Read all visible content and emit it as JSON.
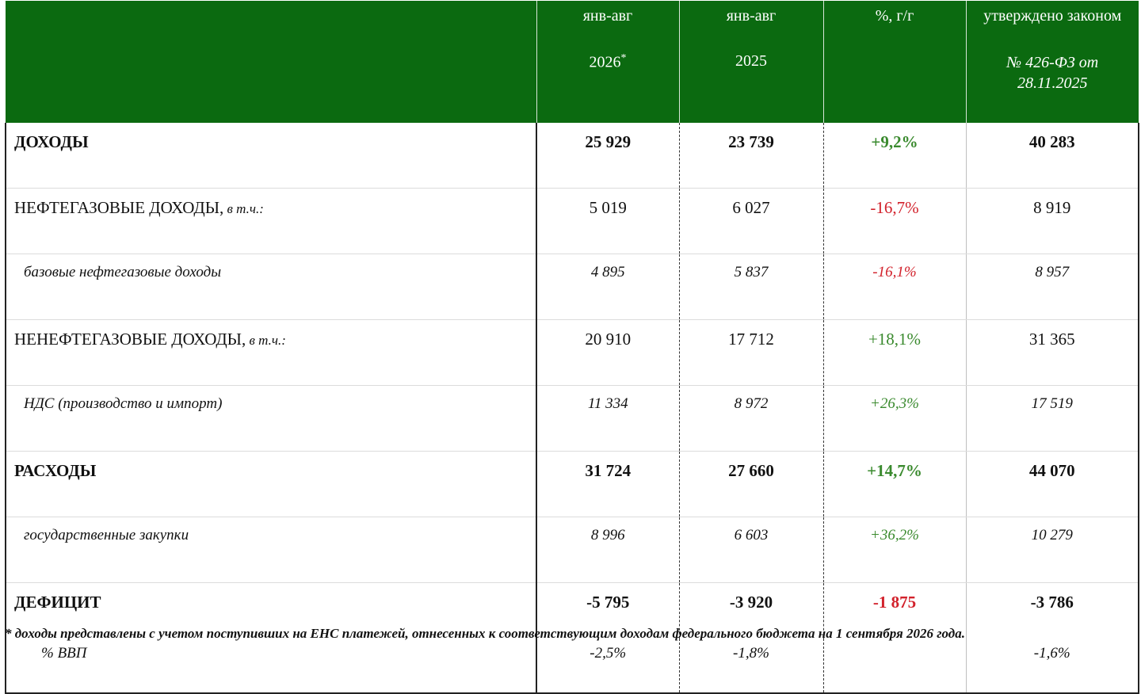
{
  "header": {
    "col1_line1": "янв-авг",
    "col1_line2": "2026",
    "col1_mark": "*",
    "col2_line1": "янв-авг",
    "col2_line2": "2025",
    "col3_line1": "%, г/г",
    "col4_line1": "утверждено законом",
    "col4_line2": "№ 426-ФЗ от",
    "col4_line3": "28.11.2025"
  },
  "rows": [
    {
      "label": "ДОХОДЫ",
      "suffix": "",
      "v2026": "25 929",
      "v2025": "23 739",
      "yoy": "+9,2%",
      "law": "40 283"
    },
    {
      "label": "НЕФТЕГАЗОВЫЕ ДОХОДЫ,",
      "suffix": " в т.ч.:",
      "v2026": "5 019",
      "v2025": "6 027",
      "yoy": "-16,7%",
      "law": "8 919"
    },
    {
      "label": "базовые нефтегазовые доходы",
      "suffix": "",
      "v2026": "4 895",
      "v2025": "5 837",
      "yoy": "-16,1%",
      "law": "8 957"
    },
    {
      "label": "НЕНЕФТЕГАЗОВЫЕ ДОХОДЫ,",
      "suffix": " в т.ч.:",
      "v2026": "20 910",
      "v2025": "17 712",
      "yoy": "+18,1%",
      "law": "31 365"
    },
    {
      "label": "НДС (производство и импорт)",
      "suffix": "",
      "v2026": "11 334",
      "v2025": "8 972",
      "yoy": "+26,3%",
      "law": "17 519"
    },
    {
      "label": "РАСХОДЫ",
      "suffix": "",
      "v2026": "31 724",
      "v2025": "27 660",
      "yoy": "+14,7%",
      "law": "44 070"
    },
    {
      "label": "государственные закупки",
      "suffix": "",
      "v2026": "8 996",
      "v2025": "6 603",
      "yoy": "+36,2%",
      "law": "10 279"
    },
    {
      "label": "ДЕФИЦИТ",
      "suffix": "",
      "v2026": "-5 795",
      "v2025": "-3 920",
      "yoy": "-1 875",
      "law": "-3 786"
    },
    {
      "label": "% ВВП",
      "suffix": "",
      "v2026": "-2,5%",
      "v2025": "-1,8%",
      "yoy": "",
      "law": "-1,6%"
    }
  ],
  "colors": {
    "header_bg": "#0b6a10",
    "positive": "#3a8a2e",
    "negative": "#d2212b"
  },
  "footnote": "* доходы представлены с учетом поступивших на ЕНС платежей, отнесенных к соответствующим доходам федерального бюджета на 1 сентября 2026 года."
}
